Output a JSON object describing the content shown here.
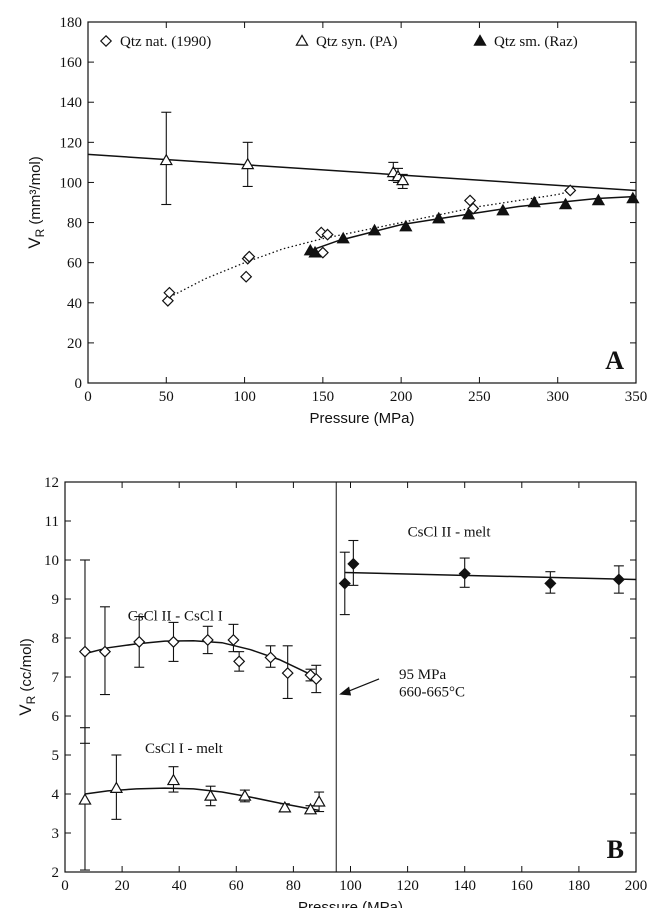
{
  "chart_data": [
    {
      "type": "scatter",
      "panel_label": "A",
      "xlabel": "Pressure (MPa)",
      "ylabel_main": "V",
      "ylabel_sub": "R",
      "ylabel_unit": "(mm³/mol)",
      "xlim": [
        0,
        350
      ],
      "ylim": [
        0,
        180
      ],
      "xticks": [
        0,
        50,
        100,
        150,
        200,
        250,
        300,
        350
      ],
      "yticks": [
        0,
        20,
        40,
        60,
        80,
        100,
        120,
        140,
        160,
        180
      ],
      "legend_position": "top",
      "series": [
        {
          "name": "Qtz nat. (1990)",
          "marker": "open-diamond",
          "points": [
            [
              51,
              41
            ],
            [
              52,
              45
            ],
            [
              101,
              53
            ],
            [
              102,
              62
            ],
            [
              103,
              63
            ],
            [
              150,
              65
            ],
            [
              149,
              75
            ],
            [
              153,
              74
            ],
            [
              244,
              91
            ],
            [
              246,
              87
            ],
            [
              308,
              96
            ]
          ]
        },
        {
          "name": "Qtz syn. (PA)",
          "marker": "open-triangle",
          "points": [
            {
              "x": 50,
              "y": 111,
              "lo": 89,
              "hi": 135
            },
            {
              "x": 102,
              "y": 109,
              "lo": 98,
              "hi": 120
            },
            {
              "x": 195,
              "y": 105,
              "lo": 101,
              "hi": 110
            },
            {
              "x": 198,
              "y": 103,
              "lo": 100,
              "hi": 107
            },
            {
              "x": 201,
              "y": 101,
              "lo": 97,
              "hi": 104
            }
          ]
        },
        {
          "name": "Qtz sm. (Raz)",
          "marker": "filled-triangle",
          "points": [
            [
              142,
              66
            ],
            [
              145,
              65
            ],
            [
              163,
              72
            ],
            [
              183,
              76
            ],
            [
              203,
              78
            ],
            [
              224,
              82
            ],
            [
              243,
              84
            ],
            [
              265,
              86
            ],
            [
              285,
              90
            ],
            [
              305,
              89
            ],
            [
              326,
              91
            ],
            [
              348,
              92
            ]
          ]
        }
      ],
      "fits": [
        {
          "style": "solid",
          "points": [
            [
              0,
              114
            ],
            [
              350,
              96
            ]
          ]
        },
        {
          "style": "dotted",
          "points": [
            [
              50,
              42
            ],
            [
              75,
              52
            ],
            [
              100,
              60
            ],
            [
              125,
              67
            ],
            [
              150,
              72
            ],
            [
              200,
              80
            ],
            [
              250,
              88
            ],
            [
              300,
              94
            ],
            [
              310,
              96
            ]
          ]
        },
        {
          "style": "solid",
          "points": [
            [
              142,
              66
            ],
            [
              160,
              71
            ],
            [
              180,
              75
            ],
            [
              200,
              79
            ],
            [
              225,
              82
            ],
            [
              250,
              85
            ],
            [
              275,
              88
            ],
            [
              300,
              90
            ],
            [
              325,
              92
            ],
            [
              350,
              93
            ]
          ]
        }
      ]
    },
    {
      "type": "scatter",
      "panel_label": "B",
      "xlabel": "Pressure (MPa)",
      "ylabel_main": "V",
      "ylabel_sub": "R",
      "ylabel_unit": "(cc/mol)",
      "xlim": [
        0,
        200
      ],
      "ylim": [
        2,
        12
      ],
      "xticks": [
        0,
        20,
        40,
        60,
        80,
        100,
        120,
        140,
        160,
        180,
        200
      ],
      "yticks": [
        2,
        3,
        4,
        5,
        6,
        7,
        8,
        9,
        10,
        11,
        12
      ],
      "divider_x": 95,
      "annotations": {
        "cscl2_cscl1": "CsCl II - CsCl I",
        "cscl1_melt": "CsCl I - melt",
        "cscl2_melt": "CsCl II - melt",
        "transition_pressure": "95 MPa",
        "transition_temperature": "660-665°C"
      },
      "series": [
        {
          "name": "CsCl II - CsCl I",
          "marker": "open-diamond",
          "points": [
            {
              "x": 7,
              "y": 7.65,
              "lo": 5.3,
              "hi": 10.0
            },
            {
              "x": 14,
              "y": 7.65,
              "lo": 6.55,
              "hi": 8.8
            },
            {
              "x": 26,
              "y": 7.9,
              "lo": 7.25,
              "hi": 8.55
            },
            {
              "x": 38,
              "y": 7.9,
              "lo": 7.4,
              "hi": 8.4
            },
            {
              "x": 50,
              "y": 7.95,
              "lo": 7.6,
              "hi": 8.3
            },
            {
              "x": 59,
              "y": 7.95,
              "lo": 7.65,
              "hi": 8.35
            },
            {
              "x": 61,
              "y": 7.4,
              "lo": 7.15,
              "hi": 7.65
            },
            {
              "x": 72,
              "y": 7.5,
              "lo": 7.25,
              "hi": 7.8
            },
            {
              "x": 78,
              "y": 7.1,
              "lo": 6.45,
              "hi": 7.8
            },
            {
              "x": 86,
              "y": 7.05,
              "lo": 6.9,
              "hi": 7.2
            },
            {
              "x": 88,
              "y": 6.95,
              "lo": 6.6,
              "hi": 7.3
            }
          ]
        },
        {
          "name": "CsCl I - melt",
          "marker": "open-triangle",
          "points": [
            {
              "x": 7,
              "y": 3.85,
              "lo": 2.05,
              "hi": 5.7
            },
            {
              "x": 18,
              "y": 4.15,
              "lo": 3.35,
              "hi": 5.0
            },
            {
              "x": 38,
              "y": 4.35,
              "lo": 4.05,
              "hi": 4.7
            },
            {
              "x": 51,
              "y": 3.95,
              "lo": 3.7,
              "hi": 4.2
            },
            {
              "x": 63,
              "y": 3.95,
              "lo": 3.8,
              "hi": 4.1
            },
            {
              "x": 77,
              "y": 3.65,
              "lo": 3.55,
              "hi": 3.75
            },
            {
              "x": 86,
              "y": 3.6,
              "lo": 3.5,
              "hi": 3.7
            },
            {
              "x": 89,
              "y": 3.8,
              "lo": 3.55,
              "hi": 4.05
            }
          ]
        },
        {
          "name": "CsCl II - melt",
          "marker": "filled-diamond",
          "points": [
            {
              "x": 98,
              "y": 9.4,
              "lo": 8.6,
              "hi": 10.2
            },
            {
              "x": 101,
              "y": 9.9,
              "lo": 9.35,
              "hi": 10.5
            },
            {
              "x": 140,
              "y": 9.65,
              "lo": 9.3,
              "hi": 10.05
            },
            {
              "x": 170,
              "y": 9.4,
              "lo": 9.15,
              "hi": 9.7
            },
            {
              "x": 194,
              "y": 9.5,
              "lo": 9.15,
              "hi": 9.85
            }
          ]
        }
      ],
      "fits": [
        {
          "style": "solid",
          "points": [
            [
              7,
              7.6
            ],
            [
              15,
              7.75
            ],
            [
              25,
              7.85
            ],
            [
              35,
              7.92
            ],
            [
              45,
              7.93
            ],
            [
              55,
              7.88
            ],
            [
              65,
              7.7
            ],
            [
              75,
              7.45
            ],
            [
              85,
              7.1
            ],
            [
              89,
              6.95
            ]
          ]
        },
        {
          "style": "solid",
          "points": [
            [
              7,
              4.0
            ],
            [
              15,
              4.08
            ],
            [
              25,
              4.13
            ],
            [
              35,
              4.15
            ],
            [
              45,
              4.13
            ],
            [
              55,
              4.05
            ],
            [
              65,
              3.92
            ],
            [
              75,
              3.77
            ],
            [
              85,
              3.63
            ],
            [
              89,
              3.58
            ]
          ]
        },
        {
          "style": "solid",
          "points": [
            [
              98,
              9.68
            ],
            [
              200,
              9.5
            ]
          ]
        }
      ]
    }
  ]
}
